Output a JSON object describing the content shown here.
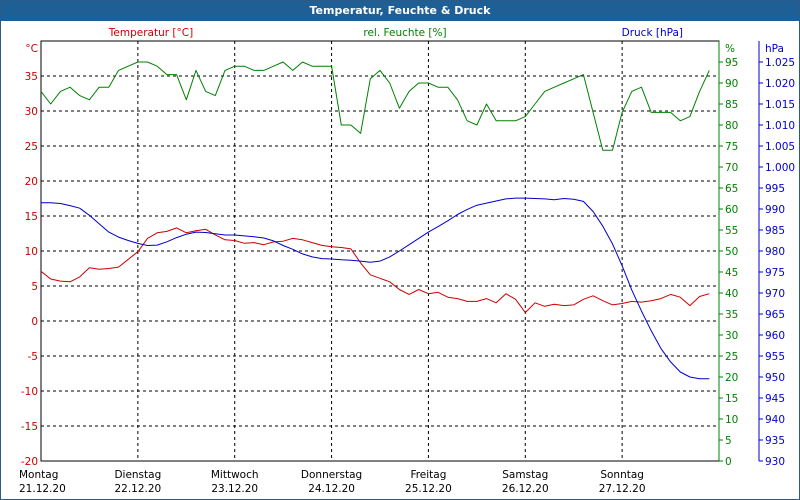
{
  "window": {
    "title": "Temperatur, Feuchte & Druck"
  },
  "colors": {
    "temperature": "#cc0000",
    "humidity": "#008000",
    "pressure": "#0000cc",
    "grid": "#000000",
    "titlebar": "#1e5f96"
  },
  "chart_data": {
    "type": "line",
    "title": "Temperatur, Feuchte & Druck",
    "x_axis": {
      "range_days": [
        0,
        7
      ],
      "ticks": [
        {
          "day": "Montag",
          "date": "21.12.20"
        },
        {
          "day": "Dienstag",
          "date": "22.12.20"
        },
        {
          "day": "Mittwoch",
          "date": "23.12.20"
        },
        {
          "day": "Donnerstag",
          "date": "24.12.20"
        },
        {
          "day": "Freitag",
          "date": "25.12.20"
        },
        {
          "day": "Samstag",
          "date": "26.12.20"
        },
        {
          "day": "Sonntag",
          "date": "27.12.20"
        }
      ]
    },
    "axes": {
      "temperature": {
        "label": "Temperatur [°C]",
        "unit": "°C",
        "ylim": [
          -20,
          40
        ],
        "ticks": [
          -20,
          -15,
          -10,
          -5,
          0,
          5,
          10,
          15,
          20,
          25,
          30,
          35
        ]
      },
      "humidity": {
        "label": "rel. Feuchte [%]",
        "unit": "%",
        "ylim": [
          0,
          100
        ],
        "ticks": [
          0,
          5,
          10,
          15,
          20,
          25,
          30,
          35,
          40,
          45,
          50,
          55,
          60,
          65,
          70,
          75,
          80,
          85,
          90,
          95
        ]
      },
      "pressure": {
        "label": "Druck [hPa]",
        "unit": "hPa",
        "ylim": [
          930,
          1030
        ],
        "ticks": [
          "930",
          "935",
          "940",
          "945",
          "950",
          "955",
          "960",
          "965",
          "970",
          "975",
          "980",
          "985",
          "990",
          "995",
          "1.000",
          "1.005",
          "1.010",
          "1.015",
          "1.020",
          "1.025"
        ]
      }
    },
    "grid": true,
    "series": [
      {
        "name": "Temperatur [°C]",
        "axis": "temperature",
        "x": [
          0,
          0.1,
          0.2,
          0.3,
          0.4,
          0.5,
          0.6,
          0.7,
          0.8,
          0.9,
          1.0,
          1.1,
          1.2,
          1.3,
          1.4,
          1.5,
          1.6,
          1.7,
          1.8,
          1.9,
          2.0,
          2.1,
          2.2,
          2.3,
          2.4,
          2.5,
          2.6,
          2.7,
          2.8,
          2.9,
          3.0,
          3.1,
          3.2,
          3.3,
          3.4,
          3.5,
          3.6,
          3.7,
          3.8,
          3.9,
          4.0,
          4.1,
          4.2,
          4.3,
          4.4,
          4.5,
          4.6,
          4.7,
          4.8,
          4.9,
          5.0,
          5.1,
          5.2,
          5.3,
          5.4,
          5.5,
          5.6,
          5.7,
          5.8,
          5.9,
          6.0,
          6.1,
          6.2,
          6.3,
          6.4,
          6.5,
          6.6,
          6.7,
          6.8,
          6.9
        ],
        "values": [
          7.1,
          6,
          5.7,
          5.6,
          6.3,
          7.6,
          7.4,
          7.5,
          7.7,
          8.8,
          9.9,
          11.8,
          12.6,
          12.8,
          13.3,
          12.6,
          12.9,
          13.1,
          12.3,
          11.6,
          11.5,
          11.1,
          11.2,
          10.9,
          11.3,
          11.4,
          11.8,
          11.6,
          11.2,
          10.8,
          10.6,
          10.5,
          10.3,
          8.3,
          6.6,
          6.1,
          5.6,
          4.5,
          3.8,
          4.5,
          3.9,
          4.1,
          3.4,
          3.2,
          2.8,
          2.8,
          3.2,
          2.6,
          3.9,
          3.1,
          1.2,
          2.6,
          2.1,
          2.4,
          2.2,
          2.3,
          3.1,
          3.6,
          2.9,
          2.3,
          2.5,
          2.8,
          2.7,
          2.9,
          3.2,
          3.8,
          3.4,
          2.2,
          3.5,
          3.9
        ]
      },
      {
        "name": "rel. Feuchte [%]",
        "axis": "humidity",
        "x": [
          0,
          0.1,
          0.2,
          0.3,
          0.4,
          0.5,
          0.6,
          0.7,
          0.8,
          0.9,
          1.0,
          1.1,
          1.2,
          1.3,
          1.4,
          1.5,
          1.6,
          1.7,
          1.8,
          1.9,
          2.0,
          2.1,
          2.2,
          2.3,
          2.4,
          2.5,
          2.6,
          2.7,
          2.8,
          2.9,
          3.0,
          3.1,
          3.2,
          3.3,
          3.4,
          3.5,
          3.6,
          3.7,
          3.8,
          3.9,
          4.0,
          4.1,
          4.2,
          4.3,
          4.4,
          4.5,
          4.6,
          4.7,
          4.8,
          4.9,
          5.0,
          5.1,
          5.2,
          5.3,
          5.4,
          5.5,
          5.6,
          5.7,
          5.8,
          5.9,
          6.0,
          6.1,
          6.2,
          6.3,
          6.4,
          6.5,
          6.6,
          6.7,
          6.8,
          6.9
        ],
        "values": [
          88,
          85,
          88,
          89,
          87,
          86,
          89,
          89,
          93,
          94,
          95,
          95,
          94,
          92,
          92,
          86,
          93,
          88,
          87,
          93,
          94,
          94,
          93,
          93,
          94,
          95,
          93,
          95,
          94,
          94,
          94,
          80,
          80,
          78,
          91,
          93,
          90,
          84,
          88,
          90,
          90,
          89,
          89,
          86,
          81,
          80,
          85,
          81,
          81,
          81,
          82,
          85,
          88,
          89,
          90,
          91,
          92,
          83,
          74,
          74,
          83,
          88,
          89,
          83,
          83,
          83,
          81,
          82,
          88,
          93
        ]
      },
      {
        "name": "Druck [hPa]",
        "axis": "pressure",
        "x": [
          0,
          0.1,
          0.2,
          0.3,
          0.4,
          0.5,
          0.6,
          0.7,
          0.8,
          0.9,
          1.0,
          1.1,
          1.2,
          1.3,
          1.4,
          1.5,
          1.6,
          1.7,
          1.8,
          1.9,
          2.0,
          2.1,
          2.2,
          2.3,
          2.4,
          2.5,
          2.6,
          2.7,
          2.8,
          2.9,
          3.0,
          3.1,
          3.2,
          3.3,
          3.4,
          3.5,
          3.6,
          3.7,
          3.8,
          3.9,
          4.0,
          4.1,
          4.2,
          4.3,
          4.4,
          4.5,
          4.6,
          4.7,
          4.8,
          4.9,
          5.0,
          5.1,
          5.2,
          5.3,
          5.4,
          5.5,
          5.6,
          5.7,
          5.8,
          5.9,
          6.0,
          6.1,
          6.2,
          6.3,
          6.4,
          6.5,
          6.6,
          6.7,
          6.8,
          6.9
        ],
        "values": [
          991.5,
          991.5,
          991.3,
          990.8,
          990.2,
          988.5,
          986.5,
          984.5,
          983.3,
          982.5,
          981.8,
          981.3,
          981.4,
          982.2,
          983.2,
          984,
          984.5,
          984.4,
          984.1,
          983.8,
          983.8,
          983.6,
          983.4,
          983.1,
          982.4,
          981.3,
          980.4,
          979.3,
          978.6,
          978.2,
          978.1,
          977.9,
          977.8,
          977.6,
          977.3,
          977.6,
          978.6,
          980,
          981.5,
          983,
          984.5,
          985.8,
          987.2,
          988.7,
          989.9,
          990.9,
          991.4,
          991.9,
          992.4,
          992.6,
          992.6,
          992.5,
          992.4,
          992.2,
          992.5,
          992.3,
          991.8,
          989.4,
          985.9,
          981.7,
          976.5,
          970.7,
          965.7,
          961,
          956.8,
          953.6,
          951.2,
          950,
          949.6,
          949.6
        ]
      }
    ]
  }
}
